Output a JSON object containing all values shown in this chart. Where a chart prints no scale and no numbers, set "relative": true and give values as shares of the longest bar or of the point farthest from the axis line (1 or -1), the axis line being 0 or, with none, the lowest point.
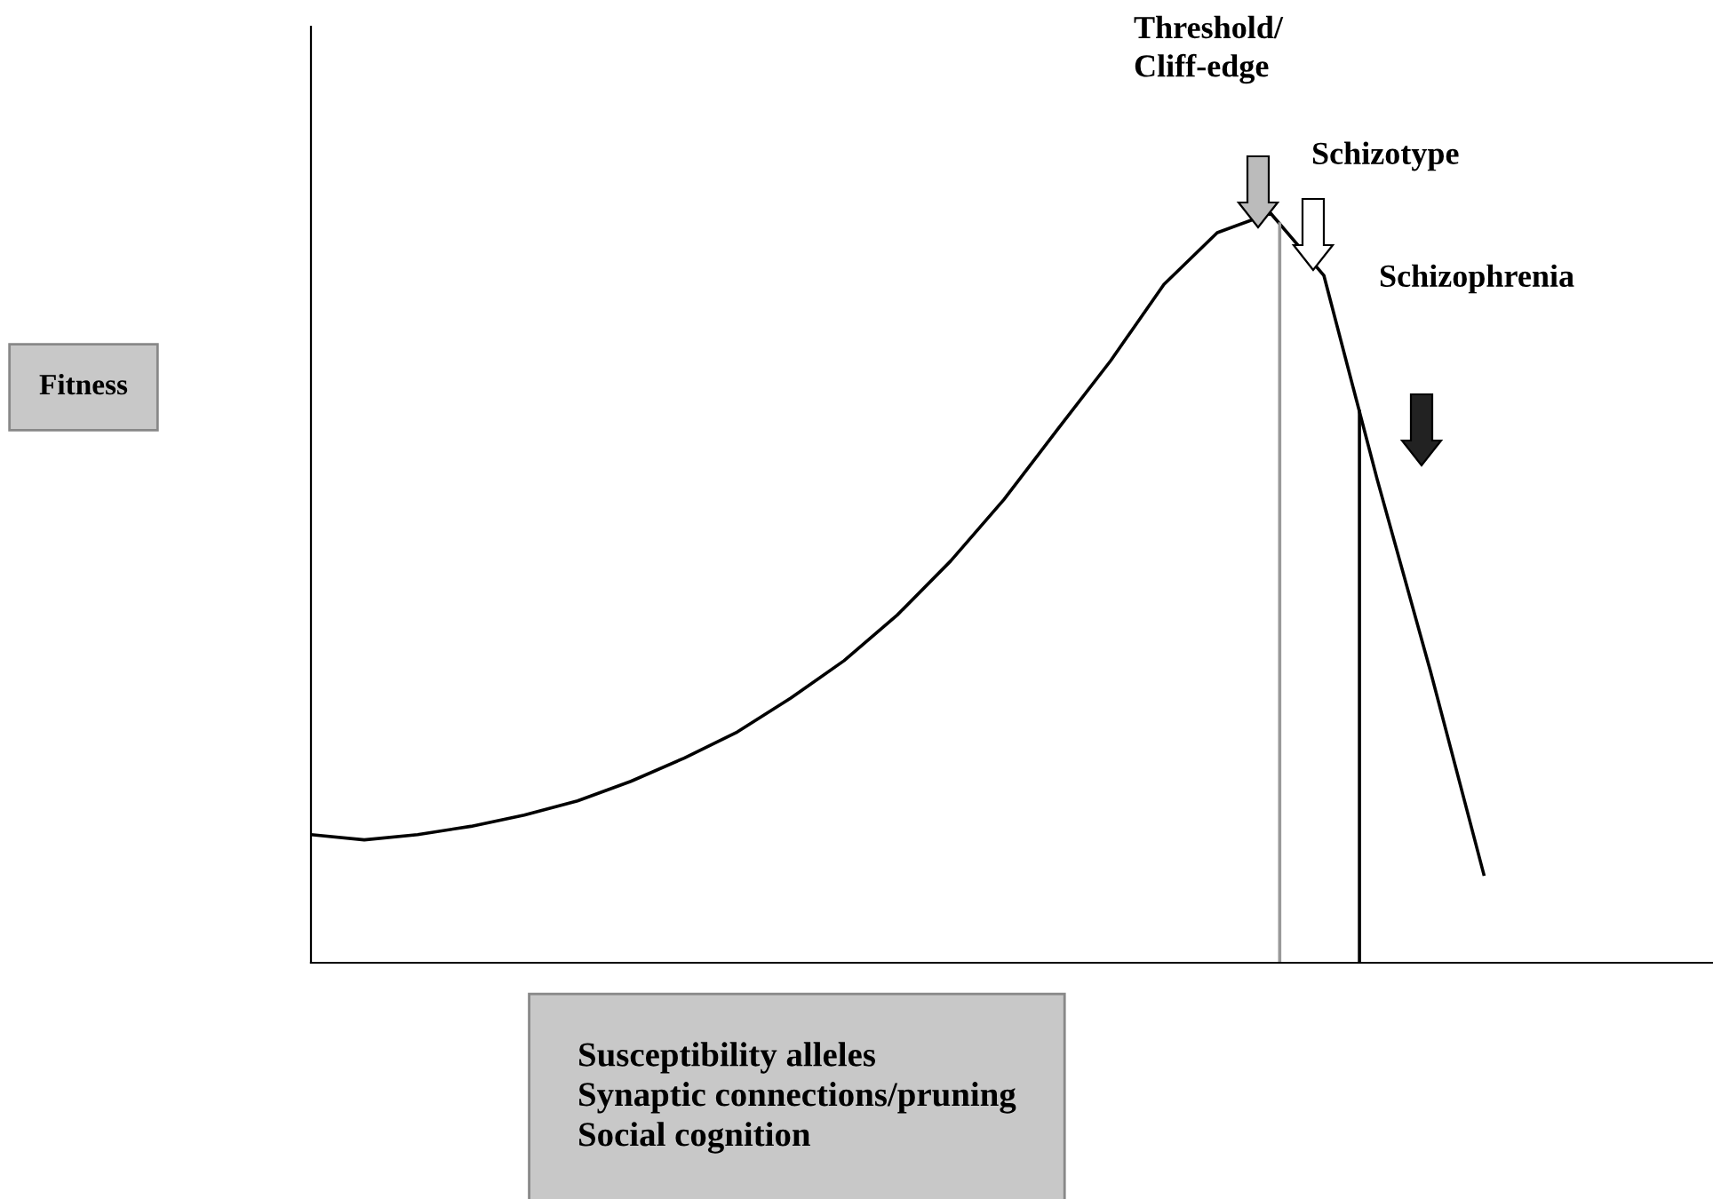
{
  "chart_data": {
    "type": "line",
    "relative": true,
    "xlabel": "Susceptibility alleles\nSynaptic connections/pruning\nSocial cognition",
    "categories": [
      null,
      null,
      null,
      null,
      null,
      null,
      null,
      null,
      null,
      null,
      null,
      null,
      null,
      null,
      null,
      null,
      null,
      null,
      null,
      null,
      null,
      null,
      null
    ],
    "series": [
      {
        "color": "#000000",
        "values": [
          0.171,
          0.164,
          0.171,
          0.182,
          0.197,
          0.216,
          0.242,
          0.273,
          0.308,
          0.353,
          0.403,
          0.464,
          0.536,
          0.618,
          0.711,
          0.803,
          0.905,
          0.974,
          1.0,
          0.917,
          0.645,
          0.389,
          0.118
        ]
      }
    ],
    "annotations": [
      "Fitness",
      "Threshold/\nCliff-edge",
      "Schizotype",
      "Schizophrenia"
    ],
    "marker": "none",
    "line_style": "solid"
  }
}
